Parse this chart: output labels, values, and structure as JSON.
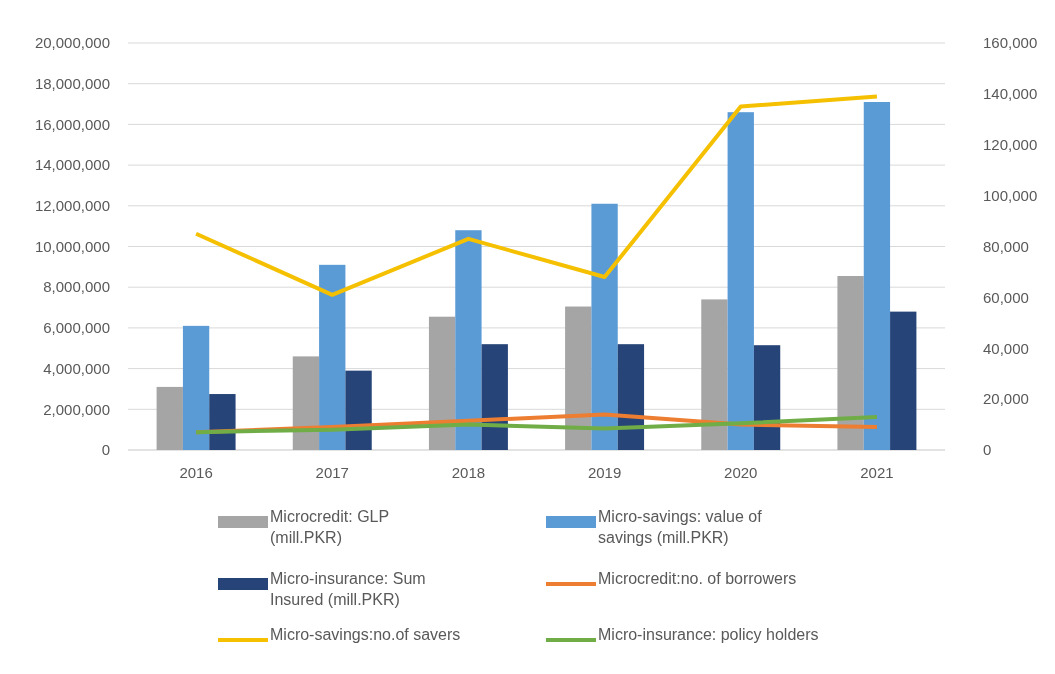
{
  "chart_data": {
    "type": "bar",
    "categories": [
      "2016",
      "2017",
      "2018",
      "2019",
      "2020",
      "2021"
    ],
    "series": [
      {
        "name": "Microcredit: GLP (mill.PKR)",
        "color": "#a5a5a5",
        "values": [
          3100000,
          4600000,
          6550000,
          7050000,
          7400000,
          8550000
        ]
      },
      {
        "name": "Micro-savings: value of savings (mill.PKR)",
        "color": "#5b9bd5",
        "values": [
          6100000,
          9100000,
          10800000,
          12100000,
          16600000,
          17100000
        ]
      },
      {
        "name": "Micro-insurance: Sum Insured (mill.PKR)",
        "color": "#264478",
        "values": [
          2750000,
          3900000,
          5200000,
          5200000,
          5150000,
          6800000
        ]
      },
      {
        "name": "Microcredit:no. of borrowers",
        "type": "line",
        "axis": "y2",
        "color": "#ed7d31",
        "values": [
          7000,
          9000,
          11500,
          14000,
          10000,
          9000
        ]
      },
      {
        "name": "Micro-savings:no.of savers",
        "type": "line",
        "axis": "y2",
        "color": "#f5c000",
        "values": [
          85000,
          61000,
          83000,
          68000,
          135000,
          139000
        ]
      },
      {
        "name": "Micro-insurance: policy holders",
        "type": "line",
        "axis": "y2",
        "color": "#70ad47",
        "values": [
          7000,
          8000,
          10000,
          8500,
          10500,
          13000
        ]
      }
    ],
    "ylim": [
      0,
      20000000
    ],
    "yticks": [
      {
        "value": 0,
        "label": "0"
      },
      {
        "value": 2000000,
        "label": "2,000,000"
      },
      {
        "value": 4000000,
        "label": "4,000,000"
      },
      {
        "value": 6000000,
        "label": "6,000,000"
      },
      {
        "value": 8000000,
        "label": "8,000,000"
      },
      {
        "value": 10000000,
        "label": "10,000,000"
      },
      {
        "value": 12000000,
        "label": "12,000,000"
      },
      {
        "value": 14000000,
        "label": "14,000,000"
      },
      {
        "value": 16000000,
        "label": "16,000,000"
      },
      {
        "value": 18000000,
        "label": "18,000,000"
      },
      {
        "value": 20000000,
        "label": "20,000,000"
      }
    ],
    "y2lim": [
      0,
      160000
    ],
    "y2ticks": [
      {
        "value": 0,
        "label": "0"
      },
      {
        "value": 20000,
        "label": "20,000"
      },
      {
        "value": 40000,
        "label": "40,000"
      },
      {
        "value": 60000,
        "label": "60,000"
      },
      {
        "value": 80000,
        "label": "80,000"
      },
      {
        "value": 100000,
        "label": "100,000"
      },
      {
        "value": 120000,
        "label": "120,000"
      },
      {
        "value": 140000,
        "label": "140,000"
      },
      {
        "value": 160000,
        "label": "160,000"
      }
    ],
    "grid": "y",
    "legend": "bottom",
    "marker": "none",
    "line_style": "solid"
  }
}
